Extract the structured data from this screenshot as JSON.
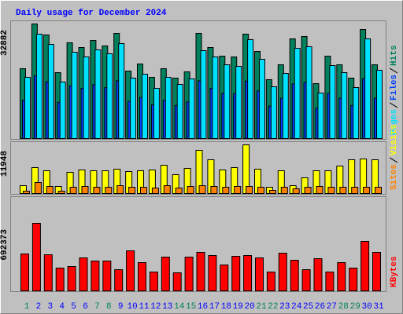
{
  "chart_data": [
    {
      "type": "bar",
      "title": "Daily usage for December 2024",
      "ylim": [
        0,
        32882
      ],
      "yticks": [
        32882
      ],
      "series": [
        {
          "name": "Pages",
          "color": "#00e0ff",
          "values": [
            17567,
            29954,
            27026,
            16215,
            24774,
            23423,
            25450,
            24323,
            27251,
            17342,
            18467,
            14414,
            17567,
            15540,
            17116,
            25224,
            23423,
            21171,
            20720,
            28378,
            22747,
            14865,
            18693,
            25900,
            26350,
            13063,
            20945,
            18918,
            14639,
            28603,
            19594
          ]
        },
        {
          "name": "Files",
          "color": "#0040ff",
          "values": [
            11000,
            18000,
            16300,
            10400,
            15100,
            14400,
            15500,
            14600,
            16600,
            10700,
            11800,
            9700,
            11000,
            9500,
            10500,
            16600,
            14400,
            13000,
            12900,
            16500,
            13700,
            9300,
            11600,
            15700,
            16100,
            8700,
            13000,
            11600,
            9500,
            17200,
            11600
          ]
        },
        {
          "name": "Hits",
          "color": "#00805c",
          "values": [
            20044,
            32882,
            29729,
            18918,
            27477,
            26125,
            28152,
            26576,
            30180,
            19369,
            21396,
            17567,
            20044,
            17342,
            19144,
            30180,
            26125,
            23648,
            23423,
            29954,
            25000,
            16891,
            21171,
            28603,
            29278,
            15765,
            23648,
            21171,
            17342,
            31305,
            21171
          ]
        }
      ]
    },
    {
      "type": "bar",
      "ylim": [
        0,
        11948
      ],
      "yticks": [
        11948
      ],
      "series": [
        {
          "name": "Sites",
          "color": "#ff8000",
          "values": [
            578,
            2698,
            1734,
            578,
            1542,
            1734,
            1542,
            1542,
            1927,
            1542,
            1542,
            1349,
            1927,
            1349,
            1734,
            1927,
            1734,
            1542,
            1734,
            1734,
            1542,
            771,
            1542,
            1156,
            1542,
            1734,
            1542,
            1542,
            1542,
            1542,
            1542
          ]
        },
        {
          "name": "Visits",
          "color": "#ffff00",
          "values": [
            1927,
            6359,
            5588,
            1734,
            5203,
            5781,
            5588,
            5588,
            5974,
            5396,
            5588,
            5781,
            6937,
            4625,
            6166,
            10599,
            8286,
            5781,
            6359,
            11948,
            5974,
            1542,
            5588,
            1927,
            3854,
            5588,
            5588,
            6745,
            8286,
            8479,
            8286
          ]
        }
      ]
    },
    {
      "type": "bar",
      "ylim": [
        0,
        692373
      ],
      "yticks": [
        692373
      ],
      "categories": [
        1,
        2,
        3,
        4,
        5,
        6,
        7,
        8,
        9,
        10,
        11,
        12,
        13,
        14,
        15,
        16,
        17,
        18,
        19,
        20,
        21,
        22,
        23,
        24,
        25,
        26,
        27,
        28,
        29,
        30,
        31
      ],
      "label_colors": [
        "#00805c",
        "#0000ff",
        "#0000ff",
        "#0000ff",
        "#0000ff",
        "#0000ff",
        "#00805c",
        "#00805c",
        "#0000ff",
        "#0000ff",
        "#0000ff",
        "#0000ff",
        "#0000ff",
        "#00805c",
        "#00805c",
        "#0000ff",
        "#0000ff",
        "#0000ff",
        "#0000ff",
        "#0000ff",
        "#00805c",
        "#00805c",
        "#0000ff",
        "#0000ff",
        "#0000ff",
        "#0000ff",
        "#0000ff",
        "#00805c",
        "#00805c",
        "#0000ff",
        "#0000ff"
      ],
      "series": [
        {
          "name": "KBytes",
          "color": "#ff0000",
          "values": [
            378397,
            692373,
            370346,
            233479,
            249581,
            338142,
            305938,
            305938,
            217377,
            410601,
            289836,
            193224,
            346193,
            185173,
            346193,
            394499,
            362295,
            265683,
            354244,
            362295,
            338142,
            193224,
            386448,
            313989,
            217377,
            330091,
            193224,
            289836,
            233479,
            507213,
            394499
          ]
        }
      ]
    }
  ]
}
